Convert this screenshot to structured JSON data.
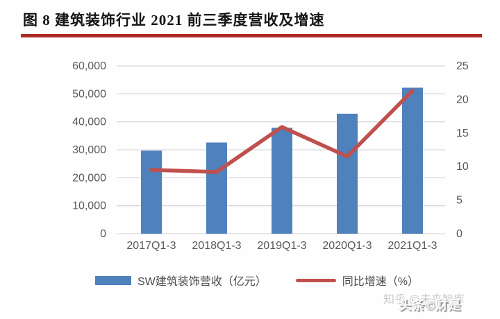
{
  "title": "图 8 建筑装饰行业 2021 前三季度营收及增速",
  "colors": {
    "title_underline": "#b02b26",
    "bar": "#4f81bd",
    "line": "#c0504d",
    "grid": "#d9d9d9",
    "axis_text": "#595959"
  },
  "chart_data": {
    "type": "bar",
    "subtype": "bar-line combo, dual axis",
    "title": "建筑装饰行业2021前三季度营收及增速",
    "categories": [
      "2017Q1-3",
      "2018Q1-3",
      "2019Q1-3",
      "2020Q1-3",
      "2021Q1-3"
    ],
    "series": [
      {
        "name": "SW建筑装饰营收（亿元）",
        "type": "bar",
        "axis": "left",
        "color": "#4f81bd",
        "values": [
          29700,
          32600,
          37900,
          42900,
          52200
        ]
      },
      {
        "name": "同比增速（%）",
        "type": "line",
        "axis": "right",
        "color": "#c0504d",
        "values": [
          9.5,
          9.2,
          15.9,
          11.5,
          21.3
        ]
      }
    ],
    "left_axis": {
      "min": 0,
      "max": 60000,
      "step": 10000,
      "tick_labels": [
        "60,000",
        "50,000",
        "40,000",
        "30,000",
        "20,000",
        "10,000",
        "0"
      ]
    },
    "right_axis": {
      "min": 0,
      "max": 25,
      "step": 5,
      "tick_labels": [
        "25",
        "20",
        "15",
        "10",
        "5",
        "0"
      ]
    },
    "grid": true,
    "legend_position": "bottom"
  },
  "watermarks": {
    "zhihu": "知乎 @未来智库",
    "toutiao": "头条©财是"
  }
}
